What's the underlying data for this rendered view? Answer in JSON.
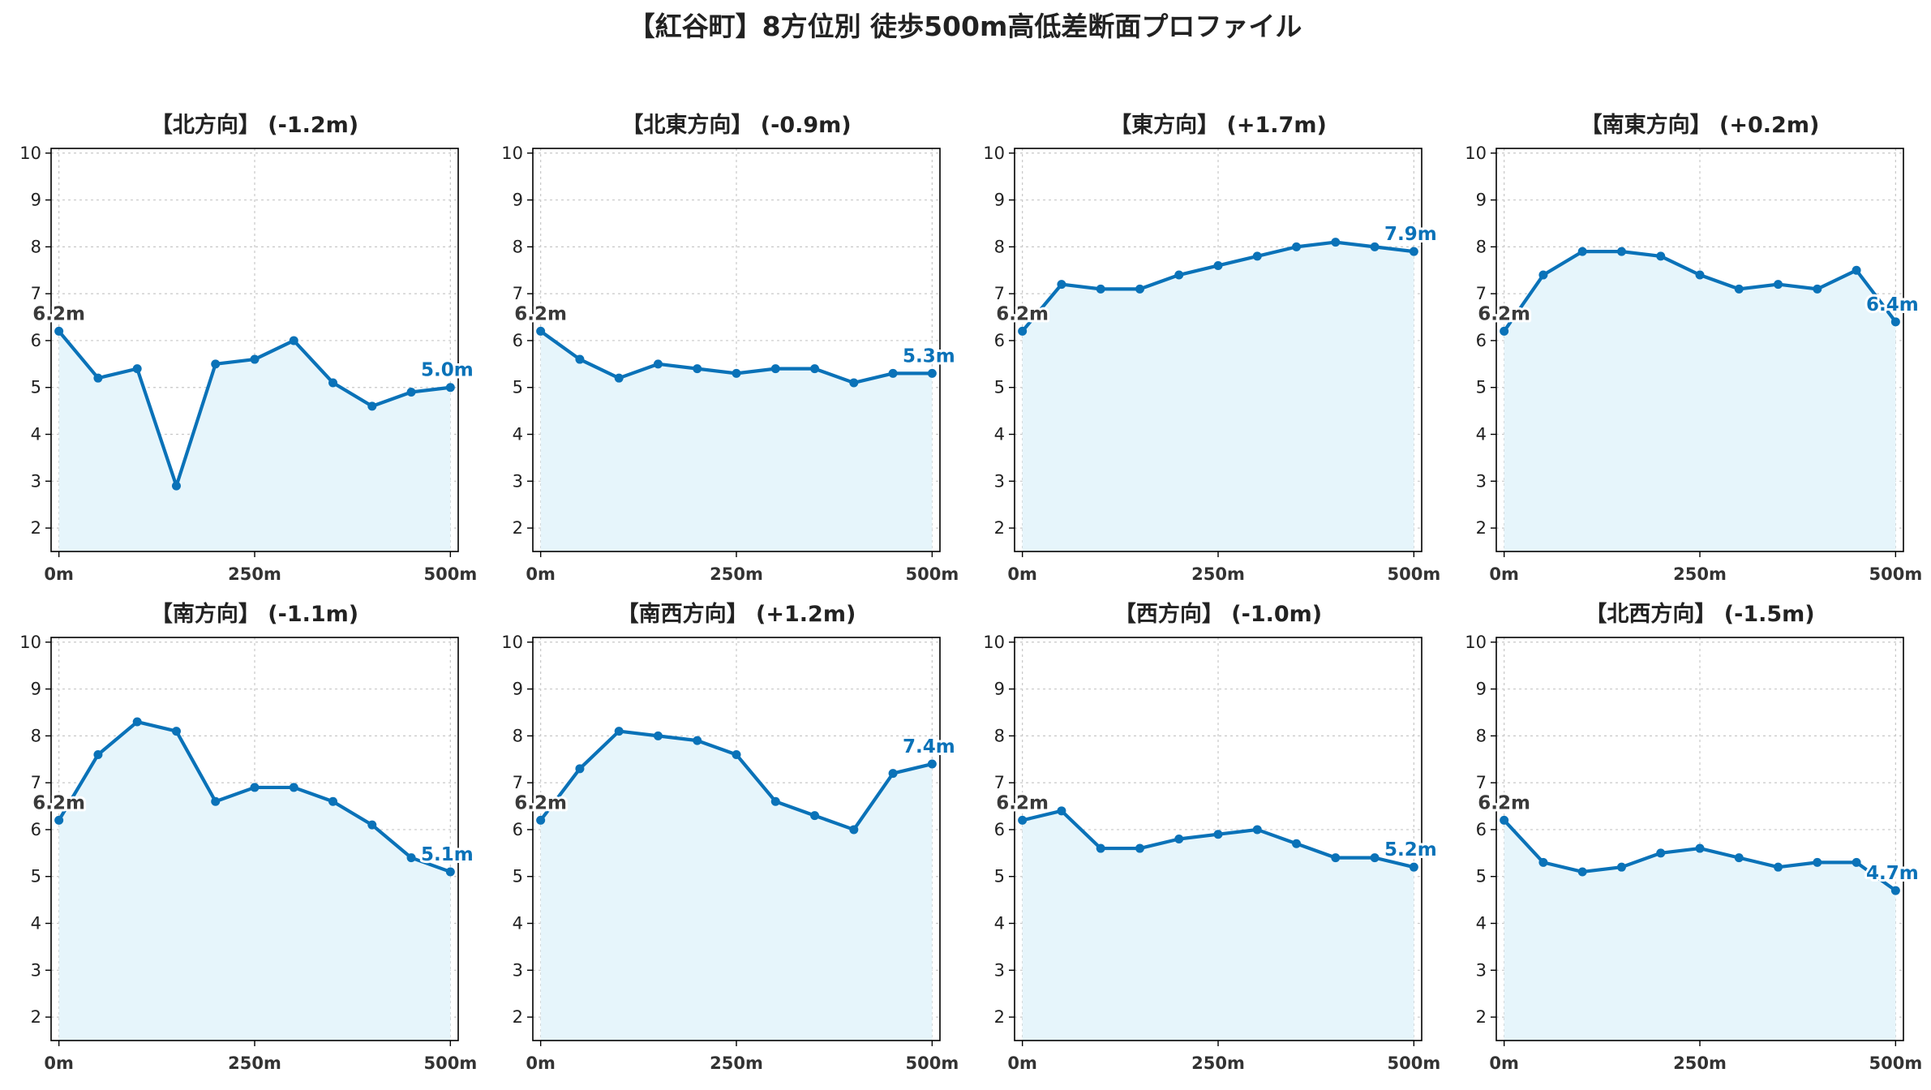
{
  "figure": {
    "title": "【紅谷町】8方位別 徒歩500m高低差断面プロファイル"
  },
  "colors": {
    "line": "#0a72b8",
    "fill": "#e6f5fb",
    "start_label": "#3a3a3a",
    "end_label": "#0a72b8",
    "grid": "#c8c8c8",
    "axis": "#000000"
  },
  "chart_data": [
    {
      "type": "area",
      "title": "【北方向】 (-1.2m)",
      "x": [
        0,
        50,
        100,
        150,
        200,
        250,
        300,
        350,
        400,
        450,
        500
      ],
      "values": [
        6.2,
        5.2,
        5.4,
        2.9,
        5.5,
        5.6,
        6.0,
        5.1,
        4.6,
        4.9,
        5.0
      ],
      "xticks": [
        "0m",
        "250m",
        "500m"
      ],
      "yticks": [
        "2",
        "3",
        "4",
        "5",
        "6",
        "7",
        "8",
        "9",
        "10"
      ],
      "ylim": [
        1.5,
        10.1
      ],
      "xlim": [
        -10,
        510
      ],
      "start_label": "6.2m",
      "end_label": "5.0m",
      "grid": true
    },
    {
      "type": "area",
      "title": "【北東方向】 (-0.9m)",
      "x": [
        0,
        50,
        100,
        150,
        200,
        250,
        300,
        350,
        400,
        450,
        500
      ],
      "values": [
        6.2,
        5.6,
        5.2,
        5.5,
        5.4,
        5.3,
        5.4,
        5.4,
        5.1,
        5.3,
        5.3
      ],
      "xticks": [
        "0m",
        "250m",
        "500m"
      ],
      "yticks": [
        "2",
        "3",
        "4",
        "5",
        "6",
        "7",
        "8",
        "9",
        "10"
      ],
      "ylim": [
        1.5,
        10.1
      ],
      "xlim": [
        -10,
        510
      ],
      "start_label": "6.2m",
      "end_label": "5.3m",
      "grid": true
    },
    {
      "type": "area",
      "title": "【東方向】 (+1.7m)",
      "x": [
        0,
        50,
        100,
        150,
        200,
        250,
        300,
        350,
        400,
        450,
        500
      ],
      "values": [
        6.2,
        7.2,
        7.1,
        7.1,
        7.4,
        7.6,
        7.8,
        8.0,
        8.1,
        8.0,
        7.9
      ],
      "xticks": [
        "0m",
        "250m",
        "500m"
      ],
      "yticks": [
        "2",
        "3",
        "4",
        "5",
        "6",
        "7",
        "8",
        "9",
        "10"
      ],
      "ylim": [
        1.5,
        10.1
      ],
      "xlim": [
        -10,
        510
      ],
      "start_label": "6.2m",
      "end_label": "7.9m",
      "grid": true
    },
    {
      "type": "area",
      "title": "【南東方向】 (+0.2m)",
      "x": [
        0,
        50,
        100,
        150,
        200,
        250,
        300,
        350,
        400,
        450,
        500
      ],
      "values": [
        6.2,
        7.4,
        7.9,
        7.9,
        7.8,
        7.4,
        7.1,
        7.2,
        7.1,
        7.5,
        6.4
      ],
      "xticks": [
        "0m",
        "250m",
        "500m"
      ],
      "yticks": [
        "2",
        "3",
        "4",
        "5",
        "6",
        "7",
        "8",
        "9",
        "10"
      ],
      "ylim": [
        1.5,
        10.1
      ],
      "xlim": [
        -10,
        510
      ],
      "start_label": "6.2m",
      "end_label": "6.4m",
      "grid": true
    },
    {
      "type": "area",
      "title": "【南方向】 (-1.1m)",
      "x": [
        0,
        50,
        100,
        150,
        200,
        250,
        300,
        350,
        400,
        450,
        500
      ],
      "values": [
        6.2,
        7.6,
        8.3,
        8.1,
        6.6,
        6.9,
        6.9,
        6.6,
        6.1,
        5.4,
        5.1
      ],
      "xticks": [
        "0m",
        "250m",
        "500m"
      ],
      "yticks": [
        "2",
        "3",
        "4",
        "5",
        "6",
        "7",
        "8",
        "9",
        "10"
      ],
      "ylim": [
        1.5,
        10.1
      ],
      "xlim": [
        -10,
        510
      ],
      "start_label": "6.2m",
      "end_label": "5.1m",
      "grid": true
    },
    {
      "type": "area",
      "title": "【南西方向】 (+1.2m)",
      "x": [
        0,
        50,
        100,
        150,
        200,
        250,
        300,
        350,
        400,
        450,
        500
      ],
      "values": [
        6.2,
        7.3,
        8.1,
        8.0,
        7.9,
        7.6,
        6.6,
        6.3,
        6.0,
        7.2,
        7.4
      ],
      "xticks": [
        "0m",
        "250m",
        "500m"
      ],
      "yticks": [
        "2",
        "3",
        "4",
        "5",
        "6",
        "7",
        "8",
        "9",
        "10"
      ],
      "ylim": [
        1.5,
        10.1
      ],
      "xlim": [
        -10,
        510
      ],
      "start_label": "6.2m",
      "end_label": "7.4m",
      "grid": true
    },
    {
      "type": "area",
      "title": "【西方向】 (-1.0m)",
      "x": [
        0,
        50,
        100,
        150,
        200,
        250,
        300,
        350,
        400,
        450,
        500
      ],
      "values": [
        6.2,
        6.4,
        5.6,
        5.6,
        5.8,
        5.9,
        6.0,
        5.7,
        5.4,
        5.4,
        5.2
      ],
      "xticks": [
        "0m",
        "250m",
        "500m"
      ],
      "yticks": [
        "2",
        "3",
        "4",
        "5",
        "6",
        "7",
        "8",
        "9",
        "10"
      ],
      "ylim": [
        1.5,
        10.1
      ],
      "xlim": [
        -10,
        510
      ],
      "start_label": "6.2m",
      "end_label": "5.2m",
      "grid": true
    },
    {
      "type": "area",
      "title": "【北西方向】 (-1.5m)",
      "x": [
        0,
        50,
        100,
        150,
        200,
        250,
        300,
        350,
        400,
        450,
        500
      ],
      "values": [
        6.2,
        5.3,
        5.1,
        5.2,
        5.5,
        5.6,
        5.4,
        5.2,
        5.3,
        5.3,
        4.7
      ],
      "xticks": [
        "0m",
        "250m",
        "500m"
      ],
      "yticks": [
        "2",
        "3",
        "4",
        "5",
        "6",
        "7",
        "8",
        "9",
        "10"
      ],
      "ylim": [
        1.5,
        10.1
      ],
      "xlim": [
        -10,
        510
      ],
      "start_label": "6.2m",
      "end_label": "4.7m",
      "grid": true
    }
  ]
}
